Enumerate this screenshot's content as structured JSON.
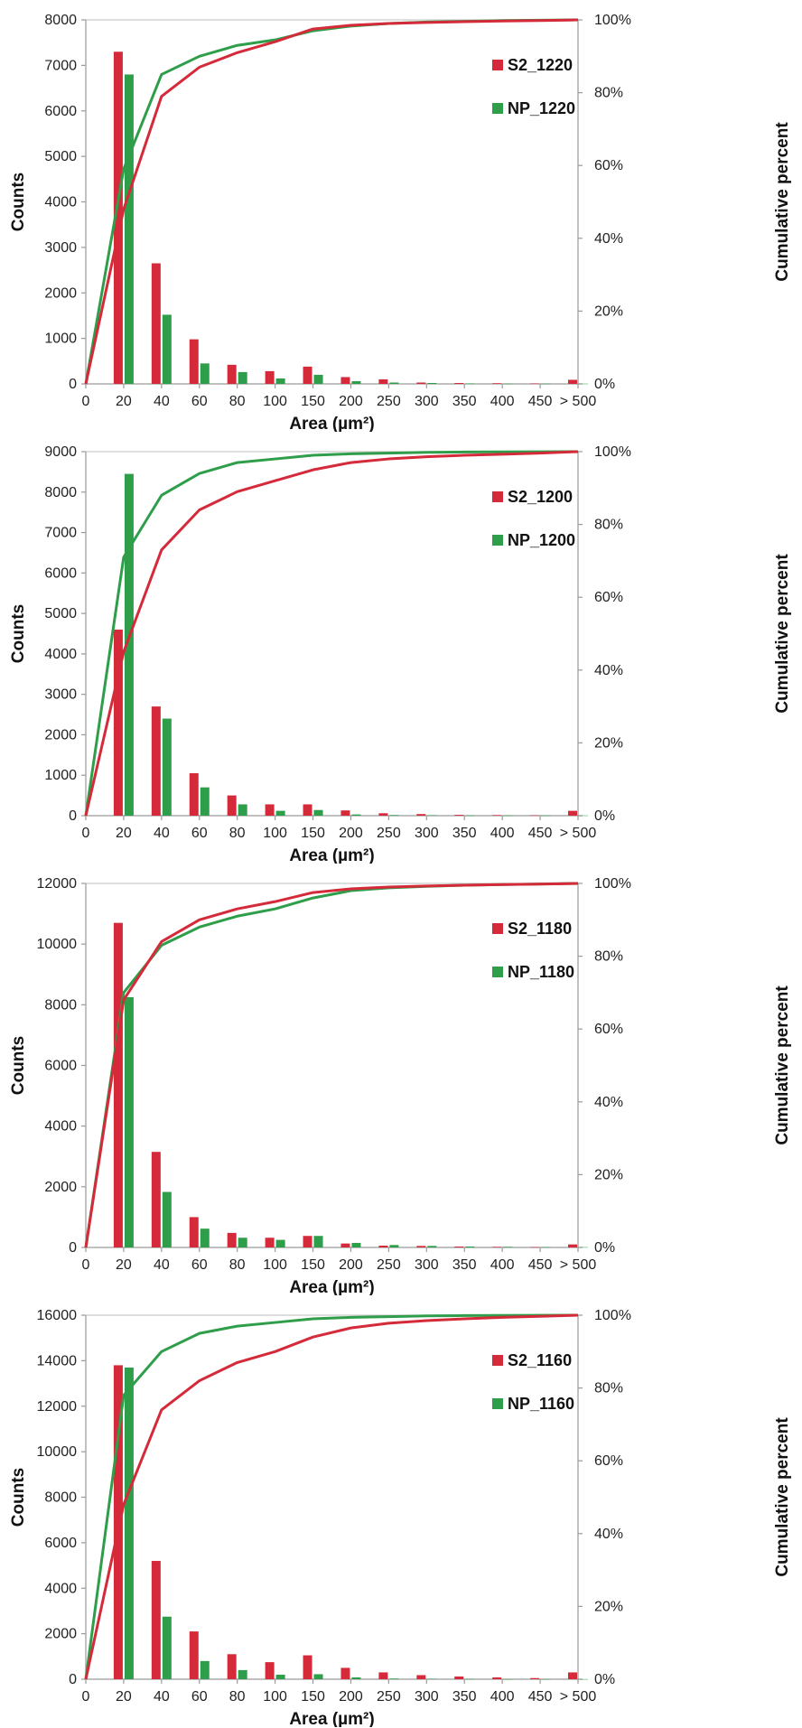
{
  "colors": {
    "s2": "#d42a3a",
    "np": "#2f9e4a"
  },
  "chart_data": [
    {
      "type": "bar",
      "categories": [
        "20",
        "40",
        "60",
        "80",
        "100",
        "150",
        "200",
        "250",
        "300",
        "350",
        "400",
        "450",
        "> 500"
      ],
      "x_ticks": [
        "0",
        "20",
        "40",
        "60",
        "80",
        "100",
        "150",
        "200",
        "250",
        "300",
        "350",
        "400",
        "450",
        "> 500"
      ],
      "xlabel": "Area (µm²)",
      "ylabel": "Counts",
      "y2label": "Cumulative percent",
      "ylim": [
        0,
        8000
      ],
      "y_ticks": [
        "0",
        "1000",
        "2000",
        "3000",
        "4000",
        "5000",
        "6000",
        "7000",
        "8000"
      ],
      "y2_ticks": [
        "0%",
        "20%",
        "40%",
        "60%",
        "80%",
        "100%"
      ],
      "legend_position": "top-right",
      "series": [
        {
          "name": "S2_1220",
          "values": [
            7300,
            2650,
            980,
            420,
            280,
            380,
            150,
            100,
            30,
            20,
            15,
            10,
            90
          ],
          "cumulative": [
            0,
            48,
            79,
            87,
            91,
            94,
            97.5,
            98.5,
            99,
            99.3,
            99.5,
            99.7,
            99.8,
            100
          ]
        },
        {
          "name": "NP_1220",
          "values": [
            6800,
            1520,
            450,
            260,
            120,
            200,
            60,
            30,
            20,
            10,
            5,
            5,
            5
          ],
          "cumulative": [
            0,
            59,
            85,
            90,
            93,
            94.5,
            97,
            98.3,
            99,
            99.4,
            99.6,
            99.8,
            99.9,
            100
          ]
        }
      ]
    },
    {
      "type": "bar",
      "categories": [
        "20",
        "40",
        "60",
        "80",
        "100",
        "150",
        "200",
        "250",
        "300",
        "350",
        "400",
        "450",
        "> 500"
      ],
      "x_ticks": [
        "0",
        "20",
        "40",
        "60",
        "80",
        "100",
        "150",
        "200",
        "250",
        "300",
        "350",
        "400",
        "450",
        "> 500"
      ],
      "xlabel": "Area (µm²)",
      "ylabel": "Counts",
      "y2label": "Cumulative percent",
      "ylim": [
        0,
        9000
      ],
      "y_ticks": [
        "0",
        "1000",
        "2000",
        "3000",
        "4000",
        "5000",
        "6000",
        "7000",
        "8000",
        "9000"
      ],
      "y2_ticks": [
        "0%",
        "20%",
        "40%",
        "60%",
        "80%",
        "100%"
      ],
      "legend_position": "top-right",
      "series": [
        {
          "name": "S2_1200",
          "values": [
            4600,
            2700,
            1050,
            500,
            280,
            280,
            130,
            60,
            40,
            20,
            15,
            10,
            120
          ],
          "cumulative": [
            0,
            45,
            73,
            84,
            89,
            92,
            95,
            97,
            98,
            98.6,
            99,
            99.3,
            99.6,
            100
          ]
        },
        {
          "name": "NP_1200",
          "values": [
            8450,
            2400,
            700,
            280,
            120,
            140,
            30,
            15,
            10,
            5,
            5,
            5,
            5
          ],
          "cumulative": [
            0,
            71,
            88,
            94,
            97,
            98,
            99,
            99.4,
            99.6,
            99.8,
            99.9,
            99.95,
            99.98,
            100
          ]
        }
      ]
    },
    {
      "type": "bar",
      "categories": [
        "20",
        "40",
        "60",
        "80",
        "100",
        "150",
        "200",
        "250",
        "300",
        "350",
        "400",
        "450",
        "> 500"
      ],
      "x_ticks": [
        "0",
        "20",
        "40",
        "60",
        "80",
        "100",
        "150",
        "200",
        "250",
        "300",
        "350",
        "400",
        "450",
        "> 500"
      ],
      "xlabel": "Area (µm²)",
      "ylabel": "Counts",
      "y2label": "Cumulative percent",
      "ylim": [
        0,
        12000
      ],
      "y_ticks": [
        "0",
        "2000",
        "4000",
        "6000",
        "8000",
        "10000",
        "12000"
      ],
      "y2_ticks": [
        "0%",
        "20%",
        "40%",
        "60%",
        "80%",
        "100%"
      ],
      "legend_position": "top-right",
      "series": [
        {
          "name": "S2_1180",
          "values": [
            10700,
            3150,
            1000,
            480,
            320,
            380,
            130,
            60,
            50,
            30,
            20,
            10,
            100
          ],
          "cumulative": [
            0,
            68,
            84,
            90,
            93,
            95,
            97.5,
            98.5,
            99,
            99.3,
            99.5,
            99.7,
            99.8,
            100
          ]
        },
        {
          "name": "NP_1180",
          "values": [
            8250,
            1830,
            620,
            320,
            250,
            380,
            150,
            80,
            50,
            30,
            20,
            10,
            10
          ],
          "cumulative": [
            0,
            70,
            83,
            88,
            91,
            93,
            96,
            98,
            98.8,
            99.2,
            99.5,
            99.7,
            99.85,
            100
          ]
        }
      ]
    },
    {
      "type": "bar",
      "categories": [
        "20",
        "40",
        "60",
        "80",
        "100",
        "150",
        "200",
        "250",
        "300",
        "350",
        "400",
        "450",
        "> 500"
      ],
      "x_ticks": [
        "0",
        "20",
        "40",
        "60",
        "80",
        "100",
        "150",
        "200",
        "250",
        "300",
        "350",
        "400",
        "450",
        "> 500"
      ],
      "xlabel": "Area (µm²)",
      "ylabel": "Counts",
      "y2label": "Cumulative percent",
      "ylim": [
        0,
        16000
      ],
      "y_ticks": [
        "0",
        "2000",
        "4000",
        "6000",
        "8000",
        "10000",
        "12000",
        "14000",
        "16000"
      ],
      "y2_ticks": [
        "0%",
        "20%",
        "40%",
        "60%",
        "80%",
        "100%"
      ],
      "legend_position": "top-right",
      "series": [
        {
          "name": "S2_1160",
          "values": [
            13800,
            5200,
            2100,
            1100,
            750,
            1050,
            500,
            300,
            180,
            120,
            80,
            50,
            300
          ],
          "cumulative": [
            0,
            48,
            74,
            82,
            87,
            90,
            94,
            96.5,
            97.8,
            98.5,
            99,
            99.4,
            99.7,
            100
          ]
        },
        {
          "name": "NP_1160",
          "values": [
            13700,
            2750,
            800,
            400,
            200,
            220,
            80,
            30,
            20,
            10,
            5,
            5,
            5
          ],
          "cumulative": [
            0,
            78,
            90,
            95,
            97,
            98,
            99,
            99.4,
            99.6,
            99.8,
            99.9,
            99.95,
            99.98,
            100
          ]
        }
      ]
    }
  ]
}
